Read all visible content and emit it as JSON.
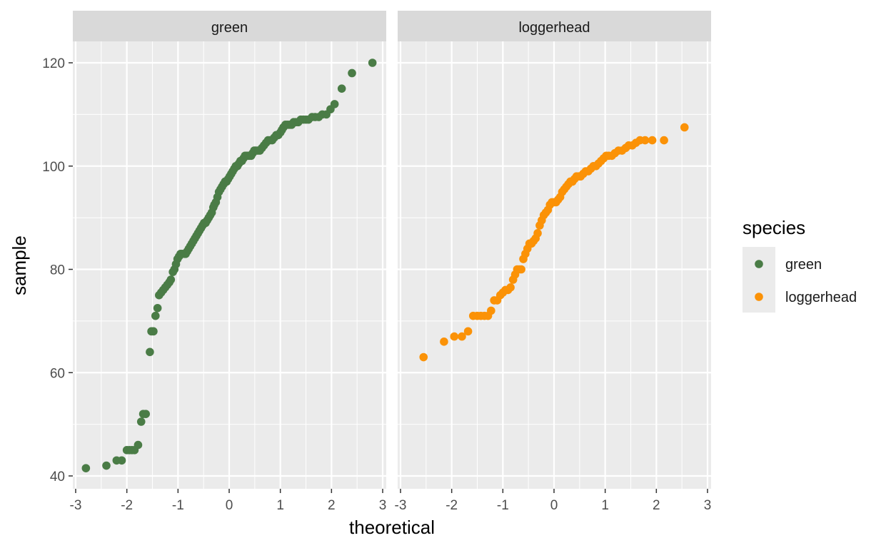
{
  "chart_data": {
    "type": "scatter",
    "subtype": "qq-plot",
    "facet_by": "species",
    "xlabel": "theoretical",
    "ylabel": "sample",
    "xlim": [
      -3,
      3
    ],
    "ylim": [
      40,
      125
    ],
    "x_ticks": [
      -3,
      -2,
      -1,
      0,
      1,
      2,
      3
    ],
    "y_ticks": [
      40,
      60,
      80,
      100,
      120
    ],
    "grid": true,
    "legend": {
      "title": "species",
      "position": "right",
      "entries": [
        {
          "label": "green",
          "color": "#4a7c46"
        },
        {
          "label": "loggerhead",
          "color": "#fb9207"
        }
      ]
    },
    "panels": [
      {
        "strip_label": "green",
        "color": "#4a7c46",
        "points": [
          [
            -2.8,
            41.5
          ],
          [
            -2.4,
            42.0
          ],
          [
            -2.2,
            43.0
          ],
          [
            -2.1,
            43.0
          ],
          [
            -2.0,
            45.0
          ],
          [
            -1.95,
            45.0
          ],
          [
            -1.9,
            45.0
          ],
          [
            -1.85,
            45.0
          ],
          [
            -1.78,
            46.0
          ],
          [
            -1.72,
            50.5
          ],
          [
            -1.68,
            52.0
          ],
          [
            -1.63,
            52.0
          ],
          [
            -1.55,
            64.0
          ],
          [
            -1.52,
            68.0
          ],
          [
            -1.48,
            68.0
          ],
          [
            -1.44,
            71.0
          ],
          [
            -1.4,
            72.5
          ],
          [
            -1.37,
            75.0
          ],
          [
            -1.33,
            75.5
          ],
          [
            -1.29,
            76.0
          ],
          [
            -1.25,
            76.5
          ],
          [
            -1.21,
            77.0
          ],
          [
            -1.17,
            77.5
          ],
          [
            -1.14,
            78.0
          ],
          [
            -1.1,
            79.5
          ],
          [
            -1.07,
            80.0
          ],
          [
            -1.04,
            81.0
          ],
          [
            -1.01,
            82.0
          ],
          [
            -0.98,
            82.5
          ],
          [
            -0.95,
            83.0
          ],
          [
            -0.92,
            83.0
          ],
          [
            -0.88,
            83.0
          ],
          [
            -0.85,
            83.0
          ],
          [
            -0.82,
            83.5
          ],
          [
            -0.79,
            84.0
          ],
          [
            -0.76,
            84.5
          ],
          [
            -0.73,
            85.0
          ],
          [
            -0.7,
            85.5
          ],
          [
            -0.67,
            86.0
          ],
          [
            -0.64,
            86.5
          ],
          [
            -0.61,
            87.0
          ],
          [
            -0.58,
            87.5
          ],
          [
            -0.55,
            88.0
          ],
          [
            -0.52,
            88.5
          ],
          [
            -0.49,
            89.0
          ],
          [
            -0.46,
            89.0
          ],
          [
            -0.43,
            89.5
          ],
          [
            -0.4,
            90.0
          ],
          [
            -0.37,
            90.5
          ],
          [
            -0.34,
            91.0
          ],
          [
            -0.31,
            92.0
          ],
          [
            -0.29,
            92.5
          ],
          [
            -0.26,
            93.0
          ],
          [
            -0.23,
            94.0
          ],
          [
            -0.2,
            95.0
          ],
          [
            -0.17,
            95.5
          ],
          [
            -0.14,
            96.0
          ],
          [
            -0.11,
            96.5
          ],
          [
            -0.08,
            97.0
          ],
          [
            -0.05,
            97.0
          ],
          [
            -0.02,
            97.5
          ],
          [
            0.01,
            98.0
          ],
          [
            0.04,
            98.5
          ],
          [
            0.07,
            99.0
          ],
          [
            0.1,
            99.5
          ],
          [
            0.13,
            100.0
          ],
          [
            0.16,
            100.0
          ],
          [
            0.19,
            100.5
          ],
          [
            0.22,
            101.0
          ],
          [
            0.25,
            101.0
          ],
          [
            0.28,
            101.5
          ],
          [
            0.31,
            102.0
          ],
          [
            0.34,
            102.0
          ],
          [
            0.37,
            102.0
          ],
          [
            0.4,
            102.0
          ],
          [
            0.43,
            102.0
          ],
          [
            0.46,
            102.5
          ],
          [
            0.49,
            103.0
          ],
          [
            0.52,
            103.0
          ],
          [
            0.56,
            103.0
          ],
          [
            0.6,
            103.0
          ],
          [
            0.64,
            103.5
          ],
          [
            0.68,
            104.0
          ],
          [
            0.72,
            104.5
          ],
          [
            0.76,
            105.0
          ],
          [
            0.8,
            105.0
          ],
          [
            0.84,
            105.0
          ],
          [
            0.88,
            105.5
          ],
          [
            0.92,
            106.0
          ],
          [
            0.96,
            106.0
          ],
          [
            1.0,
            106.5
          ],
          [
            1.03,
            107.0
          ],
          [
            1.06,
            107.5
          ],
          [
            1.1,
            108.0
          ],
          [
            1.14,
            108.0
          ],
          [
            1.18,
            108.0
          ],
          [
            1.22,
            108.0
          ],
          [
            1.26,
            108.5
          ],
          [
            1.3,
            108.5
          ],
          [
            1.35,
            108.5
          ],
          [
            1.4,
            109.0
          ],
          [
            1.45,
            109.0
          ],
          [
            1.5,
            109.0
          ],
          [
            1.55,
            109.0
          ],
          [
            1.62,
            109.5
          ],
          [
            1.68,
            109.5
          ],
          [
            1.75,
            109.5
          ],
          [
            1.82,
            110.0
          ],
          [
            1.9,
            110.0
          ],
          [
            1.98,
            111.0
          ],
          [
            2.06,
            112.0
          ],
          [
            2.2,
            115.0
          ],
          [
            2.4,
            118.0
          ],
          [
            2.8,
            120.0
          ]
        ]
      },
      {
        "strip_label": "loggerhead",
        "color": "#fb9207",
        "points": [
          [
            -2.55,
            63.0
          ],
          [
            -2.15,
            66.0
          ],
          [
            -1.95,
            67.0
          ],
          [
            -1.8,
            67.0
          ],
          [
            -1.68,
            68.0
          ],
          [
            -1.58,
            71.0
          ],
          [
            -1.5,
            71.0
          ],
          [
            -1.43,
            71.0
          ],
          [
            -1.36,
            71.0
          ],
          [
            -1.29,
            71.0
          ],
          [
            -1.23,
            72.0
          ],
          [
            -1.17,
            74.0
          ],
          [
            -1.11,
            74.0
          ],
          [
            -1.05,
            75.0
          ],
          [
            -1.0,
            75.5
          ],
          [
            -0.95,
            76.0
          ],
          [
            -0.9,
            76.0
          ],
          [
            -0.85,
            76.5
          ],
          [
            -0.8,
            78.0
          ],
          [
            -0.76,
            79.0
          ],
          [
            -0.72,
            80.0
          ],
          [
            -0.68,
            80.0
          ],
          [
            -0.64,
            80.0
          ],
          [
            -0.6,
            82.0
          ],
          [
            -0.56,
            83.0
          ],
          [
            -0.52,
            84.0
          ],
          [
            -0.48,
            85.0
          ],
          [
            -0.44,
            85.0
          ],
          [
            -0.4,
            85.5
          ],
          [
            -0.36,
            86.0
          ],
          [
            -0.32,
            87.0
          ],
          [
            -0.28,
            88.5
          ],
          [
            -0.24,
            89.5
          ],
          [
            -0.2,
            90.5
          ],
          [
            -0.16,
            91.0
          ],
          [
            -0.12,
            91.5
          ],
          [
            -0.08,
            92.5
          ],
          [
            -0.04,
            93.0
          ],
          [
            0.0,
            93.0
          ],
          [
            0.04,
            93.0
          ],
          [
            0.08,
            93.5
          ],
          [
            0.12,
            94.0
          ],
          [
            0.16,
            95.0
          ],
          [
            0.2,
            95.5
          ],
          [
            0.24,
            96.0
          ],
          [
            0.28,
            96.5
          ],
          [
            0.32,
            97.0
          ],
          [
            0.36,
            97.0
          ],
          [
            0.4,
            97.5
          ],
          [
            0.44,
            98.0
          ],
          [
            0.48,
            98.0
          ],
          [
            0.52,
            98.0
          ],
          [
            0.57,
            98.5
          ],
          [
            0.62,
            99.0
          ],
          [
            0.67,
            99.0
          ],
          [
            0.72,
            99.5
          ],
          [
            0.77,
            100.0
          ],
          [
            0.82,
            100.0
          ],
          [
            0.87,
            100.5
          ],
          [
            0.92,
            101.0
          ],
          [
            0.97,
            101.5
          ],
          [
            1.02,
            102.0
          ],
          [
            1.07,
            102.0
          ],
          [
            1.13,
            102.0
          ],
          [
            1.19,
            102.5
          ],
          [
            1.26,
            103.0
          ],
          [
            1.33,
            103.0
          ],
          [
            1.4,
            103.5
          ],
          [
            1.46,
            104.0
          ],
          [
            1.53,
            104.0
          ],
          [
            1.6,
            104.5
          ],
          [
            1.68,
            105.0
          ],
          [
            1.78,
            105.0
          ],
          [
            1.92,
            105.0
          ],
          [
            2.15,
            105.0
          ],
          [
            2.55,
            107.5
          ]
        ]
      }
    ]
  }
}
